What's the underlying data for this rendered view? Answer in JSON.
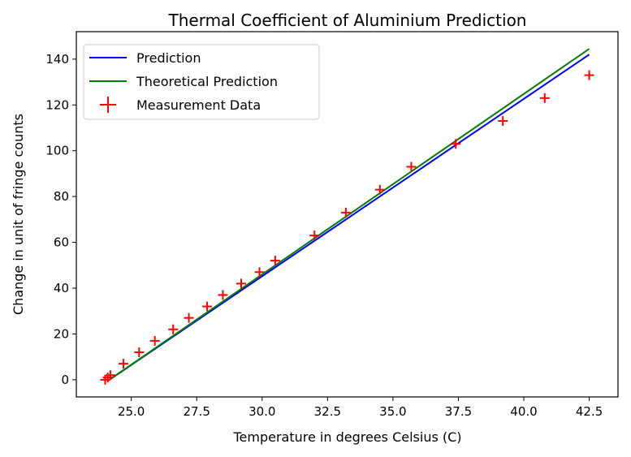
{
  "chart_data": {
    "type": "line",
    "title": "Thermal Coefficient of Aluminium Prediction",
    "xlabel": "Temperature in degrees Celsius (C)",
    "ylabel": "Change in unit of fringe counts",
    "xlim": [
      22.9,
      43.6
    ],
    "ylim": [
      -7.5,
      152
    ],
    "xticks": [
      25.0,
      27.5,
      30.0,
      32.5,
      35.0,
      37.5,
      40.0,
      42.5
    ],
    "yticks": [
      0,
      20,
      40,
      60,
      80,
      100,
      120,
      140
    ],
    "grid": false,
    "legend_position": "upper-left",
    "series": [
      {
        "name": "Prediction",
        "kind": "line",
        "color": "#0000ff",
        "x": [
          24.1,
          42.5
        ],
        "y": [
          -0.5,
          142
        ]
      },
      {
        "name": "Theoretical Prediction",
        "kind": "line",
        "color": "#008000",
        "x": [
          24.1,
          42.5
        ],
        "y": [
          -0.5,
          144.5
        ]
      },
      {
        "name": "Measurement Data",
        "kind": "scatter",
        "marker": "plus",
        "color": "#ff0000",
        "x": [
          24.0,
          24.1,
          24.2,
          24.7,
          25.3,
          25.9,
          26.6,
          27.2,
          27.9,
          28.5,
          29.2,
          29.9,
          30.5,
          32.0,
          33.2,
          34.5,
          35.7,
          37.4,
          39.2,
          40.8,
          42.5
        ],
        "y": [
          0,
          1,
          2,
          7,
          12,
          17,
          22,
          27,
          32,
          37,
          42,
          47,
          52,
          63,
          73,
          83,
          93,
          103,
          113,
          123,
          133
        ]
      }
    ]
  }
}
